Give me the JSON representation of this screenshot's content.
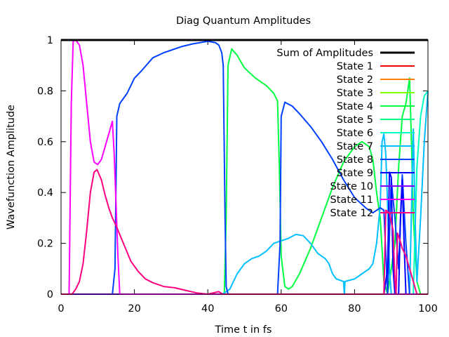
{
  "chart_data": {
    "type": "line",
    "title": "Diag Quantum Amplitudes",
    "xlabel": "Time t in fs",
    "ylabel": "Wavefunction Amplitude",
    "xlim": [
      0,
      100
    ],
    "ylim": [
      0,
      1
    ],
    "xticks": [
      "0",
      "20",
      "40",
      "60",
      "80",
      "100"
    ],
    "yticks": [
      "0",
      "0.2",
      "0.4",
      "0.6",
      "0.8",
      "1"
    ],
    "legend_position": "top-right",
    "series": [
      {
        "name": "Sum of Amplitudes",
        "color": "#000000",
        "width": 3,
        "points": [
          [
            0,
            1
          ],
          [
            100,
            1
          ]
        ]
      },
      {
        "name": "State 1",
        "color": "#ff0000",
        "width": 2,
        "points": [
          [
            0,
            0
          ],
          [
            100,
            0
          ]
        ]
      },
      {
        "name": "State 2",
        "color": "#ff8000",
        "width": 2,
        "points": [
          [
            0,
            0
          ],
          [
            100,
            0
          ]
        ]
      },
      {
        "name": "State 3",
        "color": "#80ff00",
        "width": 2,
        "points": [
          [
            0,
            0
          ],
          [
            100,
            0
          ]
        ]
      },
      {
        "name": "State 4",
        "color": "#00ff40",
        "width": 2,
        "points": [
          [
            0,
            0
          ],
          [
            44.5,
            0
          ],
          [
            45,
            0.3
          ],
          [
            45.5,
            0.9
          ],
          [
            46.5,
            0.965
          ],
          [
            48,
            0.94
          ],
          [
            50,
            0.89
          ],
          [
            53,
            0.85
          ],
          [
            56,
            0.82
          ],
          [
            58,
            0.79
          ],
          [
            59,
            0.76
          ],
          [
            59.5,
            0.5
          ],
          [
            60,
            0.15
          ],
          [
            61,
            0.03
          ],
          [
            62,
            0.02
          ],
          [
            63,
            0.03
          ],
          [
            65,
            0.08
          ],
          [
            68,
            0.18
          ],
          [
            71,
            0.3
          ],
          [
            74,
            0.42
          ],
          [
            77,
            0.52
          ],
          [
            80,
            0.58
          ],
          [
            82,
            0.6
          ],
          [
            84,
            0.58
          ],
          [
            85,
            0.53
          ],
          [
            86,
            0.4
          ],
          [
            87,
            0.3
          ],
          [
            88,
            0.05
          ],
          [
            89,
            0.0
          ],
          [
            90,
            0.1
          ],
          [
            91,
            0.2
          ],
          [
            92,
            0.5
          ],
          [
            93,
            0.7
          ],
          [
            94,
            0.75
          ],
          [
            95,
            0.85
          ],
          [
            95.5,
            0.6
          ],
          [
            96,
            0.3
          ],
          [
            97,
            0.05
          ],
          [
            98,
            0.0
          ],
          [
            100,
            0
          ]
        ]
      },
      {
        "name": "State 5",
        "color": "#00ff80",
        "width": 2,
        "points": [
          [
            0,
            0
          ],
          [
            100,
            0
          ]
        ]
      },
      {
        "name": "State 6",
        "color": "#00ffc0",
        "width": 2,
        "points": [
          [
            0,
            0
          ],
          [
            96,
            0
          ],
          [
            97,
            0.5
          ],
          [
            98,
            0.7
          ],
          [
            99,
            0.78
          ],
          [
            100,
            0.8
          ]
        ]
      },
      {
        "name": "State 7",
        "color": "#00c0ff",
        "width": 2,
        "points": [
          [
            0,
            0
          ],
          [
            44,
            0
          ],
          [
            46,
            0.02
          ],
          [
            48,
            0.08
          ],
          [
            50,
            0.12
          ],
          [
            52,
            0.14
          ],
          [
            54,
            0.15
          ],
          [
            56,
            0.17
          ],
          [
            58,
            0.2
          ],
          [
            60,
            0.21
          ],
          [
            62,
            0.22
          ],
          [
            64,
            0.235
          ],
          [
            66,
            0.23
          ],
          [
            68,
            0.2
          ],
          [
            70,
            0.16
          ],
          [
            72,
            0.14
          ],
          [
            73,
            0.12
          ],
          [
            74,
            0.08
          ],
          [
            75,
            0.06
          ],
          [
            76,
            0.055
          ],
          [
            77,
            0.05
          ],
          [
            77.2,
            0
          ],
          [
            77.4,
            0.05
          ],
          [
            80,
            0.06
          ],
          [
            82,
            0.08
          ],
          [
            84,
            0.1
          ],
          [
            85,
            0.12
          ],
          [
            86,
            0.2
          ],
          [
            87,
            0.35
          ],
          [
            87.5,
            0.6
          ],
          [
            88,
            0.63
          ],
          [
            88.5,
            0.55
          ],
          [
            89,
            0.35
          ],
          [
            89.5,
            0.1
          ],
          [
            90,
            0
          ],
          [
            95,
            0
          ],
          [
            96,
            0.65
          ],
          [
            96.5,
            0.3
          ],
          [
            97,
            0.05
          ],
          [
            98,
            0.3
          ],
          [
            99,
            0.6
          ],
          [
            100,
            0.8
          ]
        ]
      },
      {
        "name": "State 8",
        "color": "#0040ff",
        "width": 2,
        "points": [
          [
            0,
            0
          ],
          [
            14,
            0
          ],
          [
            14.7,
            0.1
          ],
          [
            15.2,
            0.7
          ],
          [
            16,
            0.75
          ],
          [
            18,
            0.79
          ],
          [
            20,
            0.85
          ],
          [
            22,
            0.88
          ],
          [
            25,
            0.93
          ],
          [
            28,
            0.95
          ],
          [
            30,
            0.96
          ],
          [
            33,
            0.975
          ],
          [
            36,
            0.985
          ],
          [
            38,
            0.99
          ],
          [
            40,
            0.995
          ],
          [
            42,
            0.99
          ],
          [
            43,
            0.98
          ],
          [
            43.8,
            0.95
          ],
          [
            44.2,
            0.9
          ],
          [
            44.7,
            0.3
          ],
          [
            45,
            0.03
          ],
          [
            45.5,
            0
          ],
          [
            59,
            0
          ],
          [
            59.7,
            0.2
          ],
          [
            60,
            0.7
          ],
          [
            61,
            0.755
          ],
          [
            63,
            0.74
          ],
          [
            65,
            0.71
          ],
          [
            68,
            0.66
          ],
          [
            71,
            0.6
          ],
          [
            74,
            0.53
          ],
          [
            77,
            0.45
          ],
          [
            80,
            0.38
          ],
          [
            83,
            0.34
          ],
          [
            85,
            0.32
          ],
          [
            87,
            0.34
          ],
          [
            88,
            0.33
          ],
          [
            89,
            0
          ],
          [
            90,
            0.45
          ],
          [
            91,
            0.3
          ],
          [
            92,
            0.1
          ],
          [
            93,
            0.47
          ],
          [
            94,
            0.2
          ],
          [
            95,
            0
          ],
          [
            100,
            0
          ]
        ]
      },
      {
        "name": "State 9",
        "color": "#0000ff",
        "width": 2,
        "points": [
          [
            0,
            0
          ],
          [
            88,
            0
          ],
          [
            89,
            0.1
          ],
          [
            89.5,
            0.48
          ],
          [
            90,
            0.46
          ],
          [
            90.5,
            0.1
          ],
          [
            91,
            0
          ],
          [
            92,
            0
          ],
          [
            92.5,
            0.3
          ],
          [
            93,
            0.45
          ],
          [
            93.5,
            0.2
          ],
          [
            94,
            0
          ],
          [
            100,
            0
          ]
        ]
      },
      {
        "name": "State 10",
        "color": "#8000ff",
        "width": 2,
        "points": [
          [
            0,
            0
          ],
          [
            100,
            0
          ]
        ]
      },
      {
        "name": "State 11",
        "color": "#ff00ff",
        "width": 2,
        "points": [
          [
            0,
            0
          ],
          [
            2.2,
            0
          ],
          [
            2.8,
            0.75
          ],
          [
            3.3,
            0.995
          ],
          [
            4,
            1.0
          ],
          [
            5,
            0.98
          ],
          [
            6,
            0.9
          ],
          [
            7,
            0.75
          ],
          [
            8,
            0.6
          ],
          [
            9,
            0.52
          ],
          [
            10,
            0.51
          ],
          [
            11,
            0.53
          ],
          [
            12,
            0.58
          ],
          [
            13,
            0.63
          ],
          [
            14,
            0.68
          ],
          [
            14.5,
            0.55
          ],
          [
            15.5,
            0.15
          ],
          [
            16,
            0
          ],
          [
            100,
            0
          ]
        ]
      },
      {
        "name": "State 12",
        "color": "#ff0080",
        "width": 2,
        "points": [
          [
            0,
            0
          ],
          [
            3,
            0
          ],
          [
            4,
            0.02
          ],
          [
            5,
            0.05
          ],
          [
            6,
            0.12
          ],
          [
            7,
            0.25
          ],
          [
            8,
            0.4
          ],
          [
            9,
            0.48
          ],
          [
            9.8,
            0.49
          ],
          [
            11,
            0.45
          ],
          [
            12,
            0.39
          ],
          [
            13,
            0.34
          ],
          [
            14,
            0.3
          ],
          [
            15,
            0.27
          ],
          [
            17,
            0.2
          ],
          [
            19,
            0.13
          ],
          [
            21,
            0.09
          ],
          [
            23,
            0.06
          ],
          [
            25,
            0.045
          ],
          [
            28,
            0.03
          ],
          [
            31,
            0.025
          ],
          [
            34,
            0.015
          ],
          [
            37,
            0.005
          ],
          [
            40,
            0
          ],
          [
            43,
            0.01
          ],
          [
            44,
            0
          ],
          [
            88,
            0
          ],
          [
            88.5,
            0.33
          ],
          [
            89.5,
            0.32
          ],
          [
            90.5,
            0.25
          ],
          [
            91,
            0.05
          ],
          [
            91.3,
            0
          ],
          [
            91.7,
            0.24
          ],
          [
            92.2,
            0.22
          ],
          [
            93,
            0.18
          ],
          [
            94,
            0.15
          ],
          [
            95,
            0.1
          ],
          [
            96,
            0.05
          ],
          [
            97,
            0
          ],
          [
            100,
            0
          ]
        ]
      }
    ]
  }
}
